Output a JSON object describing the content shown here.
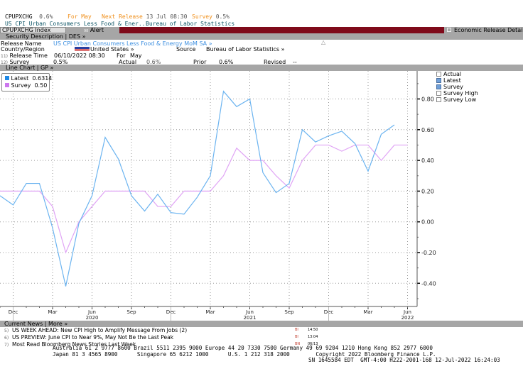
{
  "ticker_bar": {
    "ticker": "CPUPXCHG",
    "value": "0.6%",
    "for_label": "For May",
    "next_release_label": "Next Release",
    "next_release_value": "13 Jul 08:30",
    "survey_label": "Survey",
    "survey_value": "0.5%",
    "description": "US CPI Urban Consumers Less Food & Ener...",
    "source": "Bureau of Labor Statistics"
  },
  "command_bar": {
    "security": "CPUPXCHG Index",
    "alert_num": "98",
    "alert_label": "Alert",
    "details_label": "Economic Release Details",
    "accent": "#7f0a1a"
  },
  "des_section": {
    "title": "Security Description",
    "code": "DES »",
    "release_name_label": "Release Name",
    "release_name_value": "US CPI Urban Consumers Less Food & Energy MoM SA »",
    "country_label": "Country/Region",
    "country_value": "United States »",
    "source_label": "Source",
    "source_value": "Bureau of Labor Statistics »",
    "release_time_num": "11)",
    "release_time_label": "Release Time",
    "release_time_value": "06/10/2022 08:30",
    "for_label": "For",
    "for_value": "May",
    "survey_num": "12)",
    "survey_label": "Survey",
    "survey_value": "0.5%",
    "actual_label": "Actual",
    "actual_value": "0.6%",
    "prior_label": "Prior",
    "prior_value": "0.6%",
    "revised_label": "Revised",
    "revised_value": "--"
  },
  "chart_section": {
    "title": "Line Chart",
    "code": "GP »",
    "legend": [
      {
        "name": "Latest",
        "value": "0.6314",
        "color": "#1e88e5"
      },
      {
        "name": "Survey",
        "value": "0.50",
        "color": "#cc77ee"
      }
    ],
    "toggles": [
      {
        "label": "Actual",
        "checked": false
      },
      {
        "label": "Latest",
        "checked": true
      },
      {
        "label": "Survey",
        "checked": true
      },
      {
        "label": "Survey High",
        "checked": false
      },
      {
        "label": "Survey Low",
        "checked": false
      }
    ]
  },
  "chart_data": {
    "type": "line",
    "x": [
      "2019-11",
      "2019-12",
      "2020-01",
      "2020-02",
      "2020-03",
      "2020-04",
      "2020-05",
      "2020-06",
      "2020-07",
      "2020-08",
      "2020-09",
      "2020-10",
      "2020-11",
      "2020-12",
      "2021-01",
      "2021-02",
      "2021-03",
      "2021-04",
      "2021-05",
      "2021-06",
      "2021-07",
      "2021-08",
      "2021-09",
      "2021-10",
      "2021-11",
      "2021-12",
      "2022-01",
      "2022-02",
      "2022-03",
      "2022-04",
      "2022-05",
      "2022-06"
    ],
    "series": [
      {
        "name": "Latest",
        "color": "#6cb4f0",
        "values": [
          0.17,
          0.11,
          0.25,
          0.25,
          -0.04,
          -0.42,
          -0.01,
          0.17,
          0.55,
          0.41,
          0.17,
          0.07,
          0.18,
          0.06,
          0.05,
          0.16,
          0.3,
          0.85,
          0.75,
          0.8,
          0.32,
          0.19,
          0.25,
          0.6,
          0.52,
          0.56,
          0.59,
          0.51,
          0.33,
          0.57,
          0.6314,
          null
        ]
      },
      {
        "name": "Survey",
        "color": "#e0a4f5",
        "values": [
          0.2,
          0.2,
          0.2,
          0.2,
          0.1,
          -0.2,
          0.0,
          0.1,
          0.2,
          0.2,
          0.2,
          0.2,
          0.1,
          0.1,
          0.2,
          0.2,
          0.2,
          0.3,
          0.48,
          0.4,
          0.4,
          0.3,
          0.22,
          0.4,
          0.5,
          0.5,
          0.46,
          0.5,
          0.5,
          0.4,
          0.5,
          0.5
        ]
      }
    ],
    "x_tick_labels": [
      "Dec",
      "Mar",
      "Jun",
      "Sep",
      "Dec",
      "Mar",
      "Jun",
      "Sep",
      "Dec",
      "Mar",
      "Jun"
    ],
    "x_year_labels": [
      "2020",
      "2021",
      "2022"
    ],
    "y_tick_labels": [
      "0.80",
      "0.60",
      "0.40",
      "0.20",
      "0.00",
      "-0.20",
      "-0.40"
    ],
    "ylim": [
      -0.52,
      0.98
    ],
    "grid": true,
    "y_axis_side": "right",
    "legend_placement": "top-left"
  },
  "news_section": {
    "title": "Current News",
    "more": "More »",
    "items": [
      {
        "num": "5)",
        "headline": "US WEEK AHEAD: New CPI High to Amplify Message From Jobs (2)",
        "src": "BI",
        "time": "14:50"
      },
      {
        "num": "6)",
        "headline": "US PREVIEW: June CPI to Near 9%, May Not Be the Last Peak",
        "src": "BI",
        "time": "13:04"
      },
      {
        "num": "7)",
        "headline": "Most Read Bloomberg News Stories Last Week",
        "src": "BN",
        "time": "06/13"
      }
    ]
  },
  "footer": {
    "line1": "Australia 61 2 9777 8600 Brazil 5511 2395 9000 Europe 44 20 7330 7500 Germany 49 69 9204 1210 Hong Kong 852 2977 6000",
    "line2": "Japan 81 3 4565 8900      Singapore 65 6212 1000      U.S. 1 212 318 2000        Copyright 2022 Bloomberg Finance L.P.",
    "line3": "SN 1645584 EDT  GMT-4:00 H222-2001-168 12-Jul-2022 16:24:03"
  }
}
